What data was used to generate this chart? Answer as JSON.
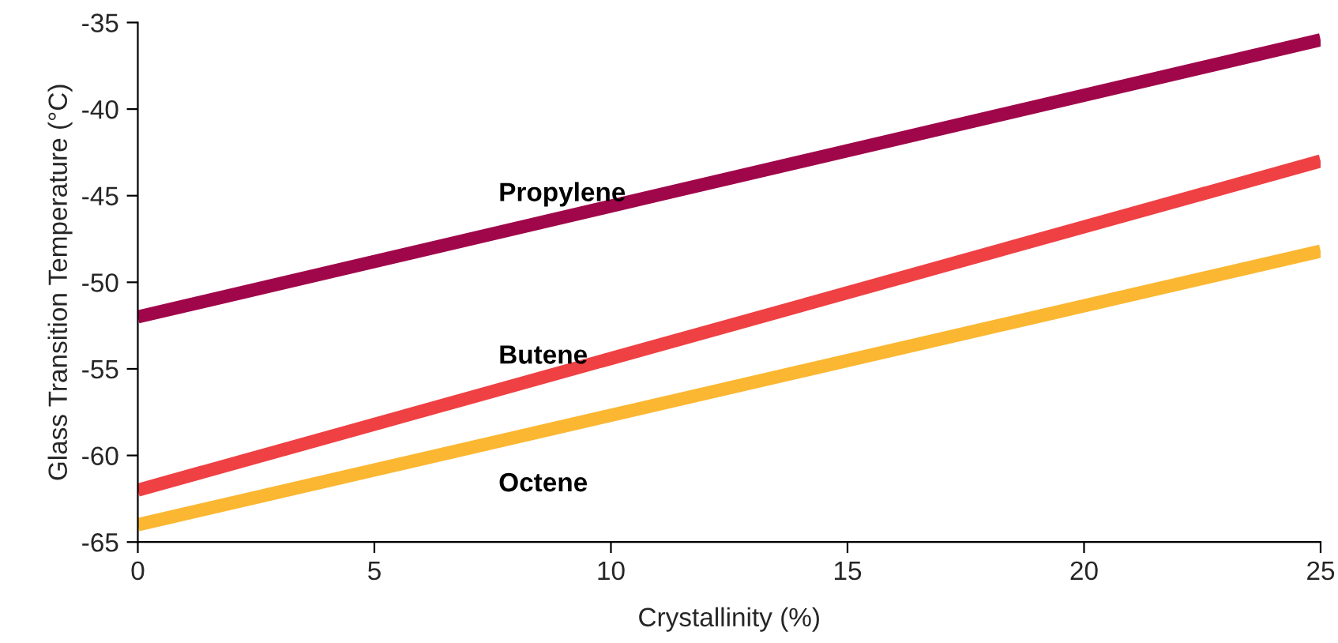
{
  "chart_data": {
    "type": "line",
    "xlabel": "Crystallinity (%)",
    "ylabel": "Glass Transition Temperature (°C)",
    "xlim": [
      0,
      25
    ],
    "ylim": [
      -65,
      -35
    ],
    "xticks": [
      0,
      5,
      10,
      15,
      20,
      25
    ],
    "yticks": [
      -65,
      -60,
      -55,
      -50,
      -45,
      -40,
      -35
    ],
    "grid": false,
    "legend": false,
    "x": [
      0,
      25
    ],
    "series": [
      {
        "name": "Propylene",
        "color": "#a0064a",
        "values": [
          -52,
          -36
        ]
      },
      {
        "name": "Butene",
        "color": "#ef4043",
        "values": [
          -62,
          -43
        ]
      },
      {
        "name": "Octene",
        "color": "#fbb731",
        "values": [
          -64,
          -48.2
        ]
      }
    ]
  }
}
